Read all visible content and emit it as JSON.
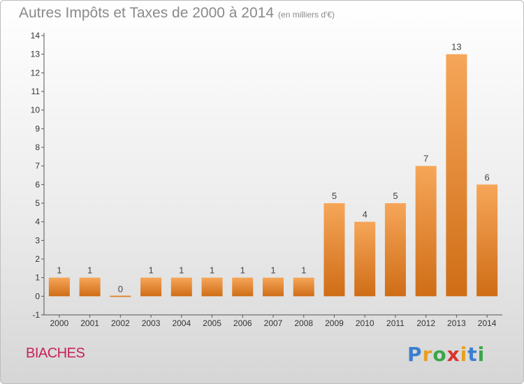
{
  "header": {
    "title": "Autres Impôts et Taxes de 2000 à 2014",
    "unit": "(en milliers d'€)"
  },
  "footer": {
    "commune": "BIACHES",
    "logo_text": "Proxiti"
  },
  "colors": {
    "bar_light": "#f6a659",
    "bar_dark": "#cf6d16",
    "commune": "#c8205a"
  },
  "chart_data": {
    "type": "bar",
    "title": "Autres Impôts et Taxes de 2000 à 2014",
    "xlabel": "",
    "ylabel": "",
    "categories": [
      "2000",
      "2001",
      "2002",
      "2003",
      "2004",
      "2005",
      "2006",
      "2007",
      "2008",
      "2009",
      "2010",
      "2011",
      "2012",
      "2013",
      "2014"
    ],
    "values": [
      1,
      1,
      0,
      1,
      1,
      1,
      1,
      1,
      1,
      5,
      4,
      5,
      7,
      13,
      6
    ],
    "ylim": [
      -1,
      14
    ],
    "yticks": [
      -1,
      0,
      1,
      2,
      3,
      4,
      5,
      6,
      7,
      8,
      9,
      10,
      11,
      12,
      13,
      14
    ],
    "grid": false,
    "legend": "none"
  }
}
